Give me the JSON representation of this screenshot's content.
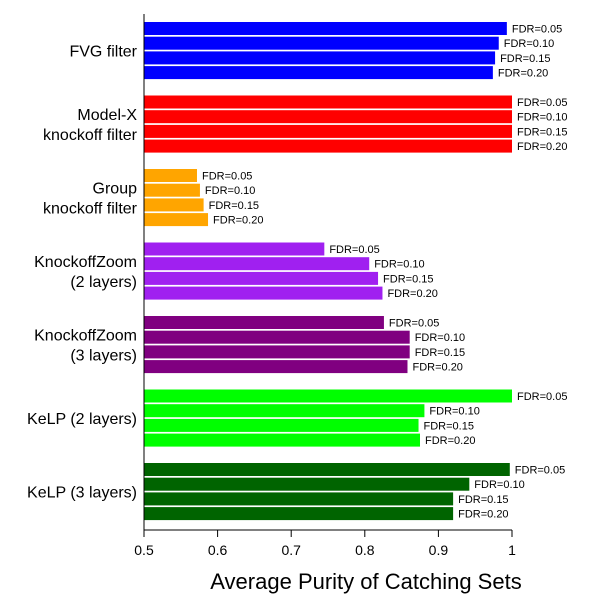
{
  "chart_data": {
    "type": "bar",
    "orientation": "horizontal",
    "title": "",
    "xlabel": "Average Purity of Catching Sets",
    "ylabel": "",
    "xlim": [
      0.5,
      1.0
    ],
    "xticks": [
      0.5,
      0.6,
      0.7,
      0.8,
      0.9,
      1.0
    ],
    "xtick_labels": [
      "0.5",
      "0.6",
      "0.7",
      "0.8",
      "0.9",
      "1"
    ],
    "grid": false,
    "legend": "none",
    "groups": [
      {
        "label_lines": [
          "FVG filter"
        ],
        "color": "#0000ff",
        "bars": [
          {
            "label": "FDR=0.05",
            "value": 0.993
          },
          {
            "label": "FDR=0.10",
            "value": 0.982
          },
          {
            "label": "FDR=0.15",
            "value": 0.977
          },
          {
            "label": "FDR=0.20",
            "value": 0.974
          }
        ]
      },
      {
        "label_lines": [
          "Model-X",
          "knockoff filter"
        ],
        "color": "#ff0000",
        "bars": [
          {
            "label": "FDR=0.05",
            "value": 1.0
          },
          {
            "label": "FDR=0.10",
            "value": 1.0
          },
          {
            "label": "FDR=0.15",
            "value": 1.0
          },
          {
            "label": "FDR=0.20",
            "value": 1.0
          }
        ]
      },
      {
        "label_lines": [
          "Group",
          "knockoff filter"
        ],
        "color": "#ffa500",
        "bars": [
          {
            "label": "FDR=0.05",
            "value": 0.572
          },
          {
            "label": "FDR=0.10",
            "value": 0.576
          },
          {
            "label": "FDR=0.15",
            "value": 0.581
          },
          {
            "label": "FDR=0.20",
            "value": 0.587
          }
        ]
      },
      {
        "label_lines": [
          "KnockoffZoom",
          "(2 layers)"
        ],
        "color": "#a020f0",
        "bars": [
          {
            "label": "FDR=0.05",
            "value": 0.745
          },
          {
            "label": "FDR=0.10",
            "value": 0.806
          },
          {
            "label": "FDR=0.15",
            "value": 0.818
          },
          {
            "label": "FDR=0.20",
            "value": 0.824
          }
        ]
      },
      {
        "label_lines": [
          "KnockoffZoom",
          "(3 layers)"
        ],
        "color": "#800080",
        "bars": [
          {
            "label": "FDR=0.05",
            "value": 0.826
          },
          {
            "label": "FDR=0.10",
            "value": 0.861
          },
          {
            "label": "FDR=0.15",
            "value": 0.861
          },
          {
            "label": "FDR=0.20",
            "value": 0.858
          }
        ]
      },
      {
        "label_lines": [
          "KeLP (2 layers)"
        ],
        "color": "#00ff00",
        "bars": [
          {
            "label": "FDR=0.05",
            "value": 1.0
          },
          {
            "label": "FDR=0.10",
            "value": 0.881
          },
          {
            "label": "FDR=0.15",
            "value": 0.873
          },
          {
            "label": "FDR=0.20",
            "value": 0.875
          }
        ]
      },
      {
        "label_lines": [
          "KeLP (3 layers)"
        ],
        "color": "#006400",
        "bars": [
          {
            "label": "FDR=0.05",
            "value": 0.997
          },
          {
            "label": "FDR=0.10",
            "value": 0.942
          },
          {
            "label": "FDR=0.15",
            "value": 0.92
          },
          {
            "label": "FDR=0.20",
            "value": 0.92
          }
        ]
      }
    ]
  }
}
